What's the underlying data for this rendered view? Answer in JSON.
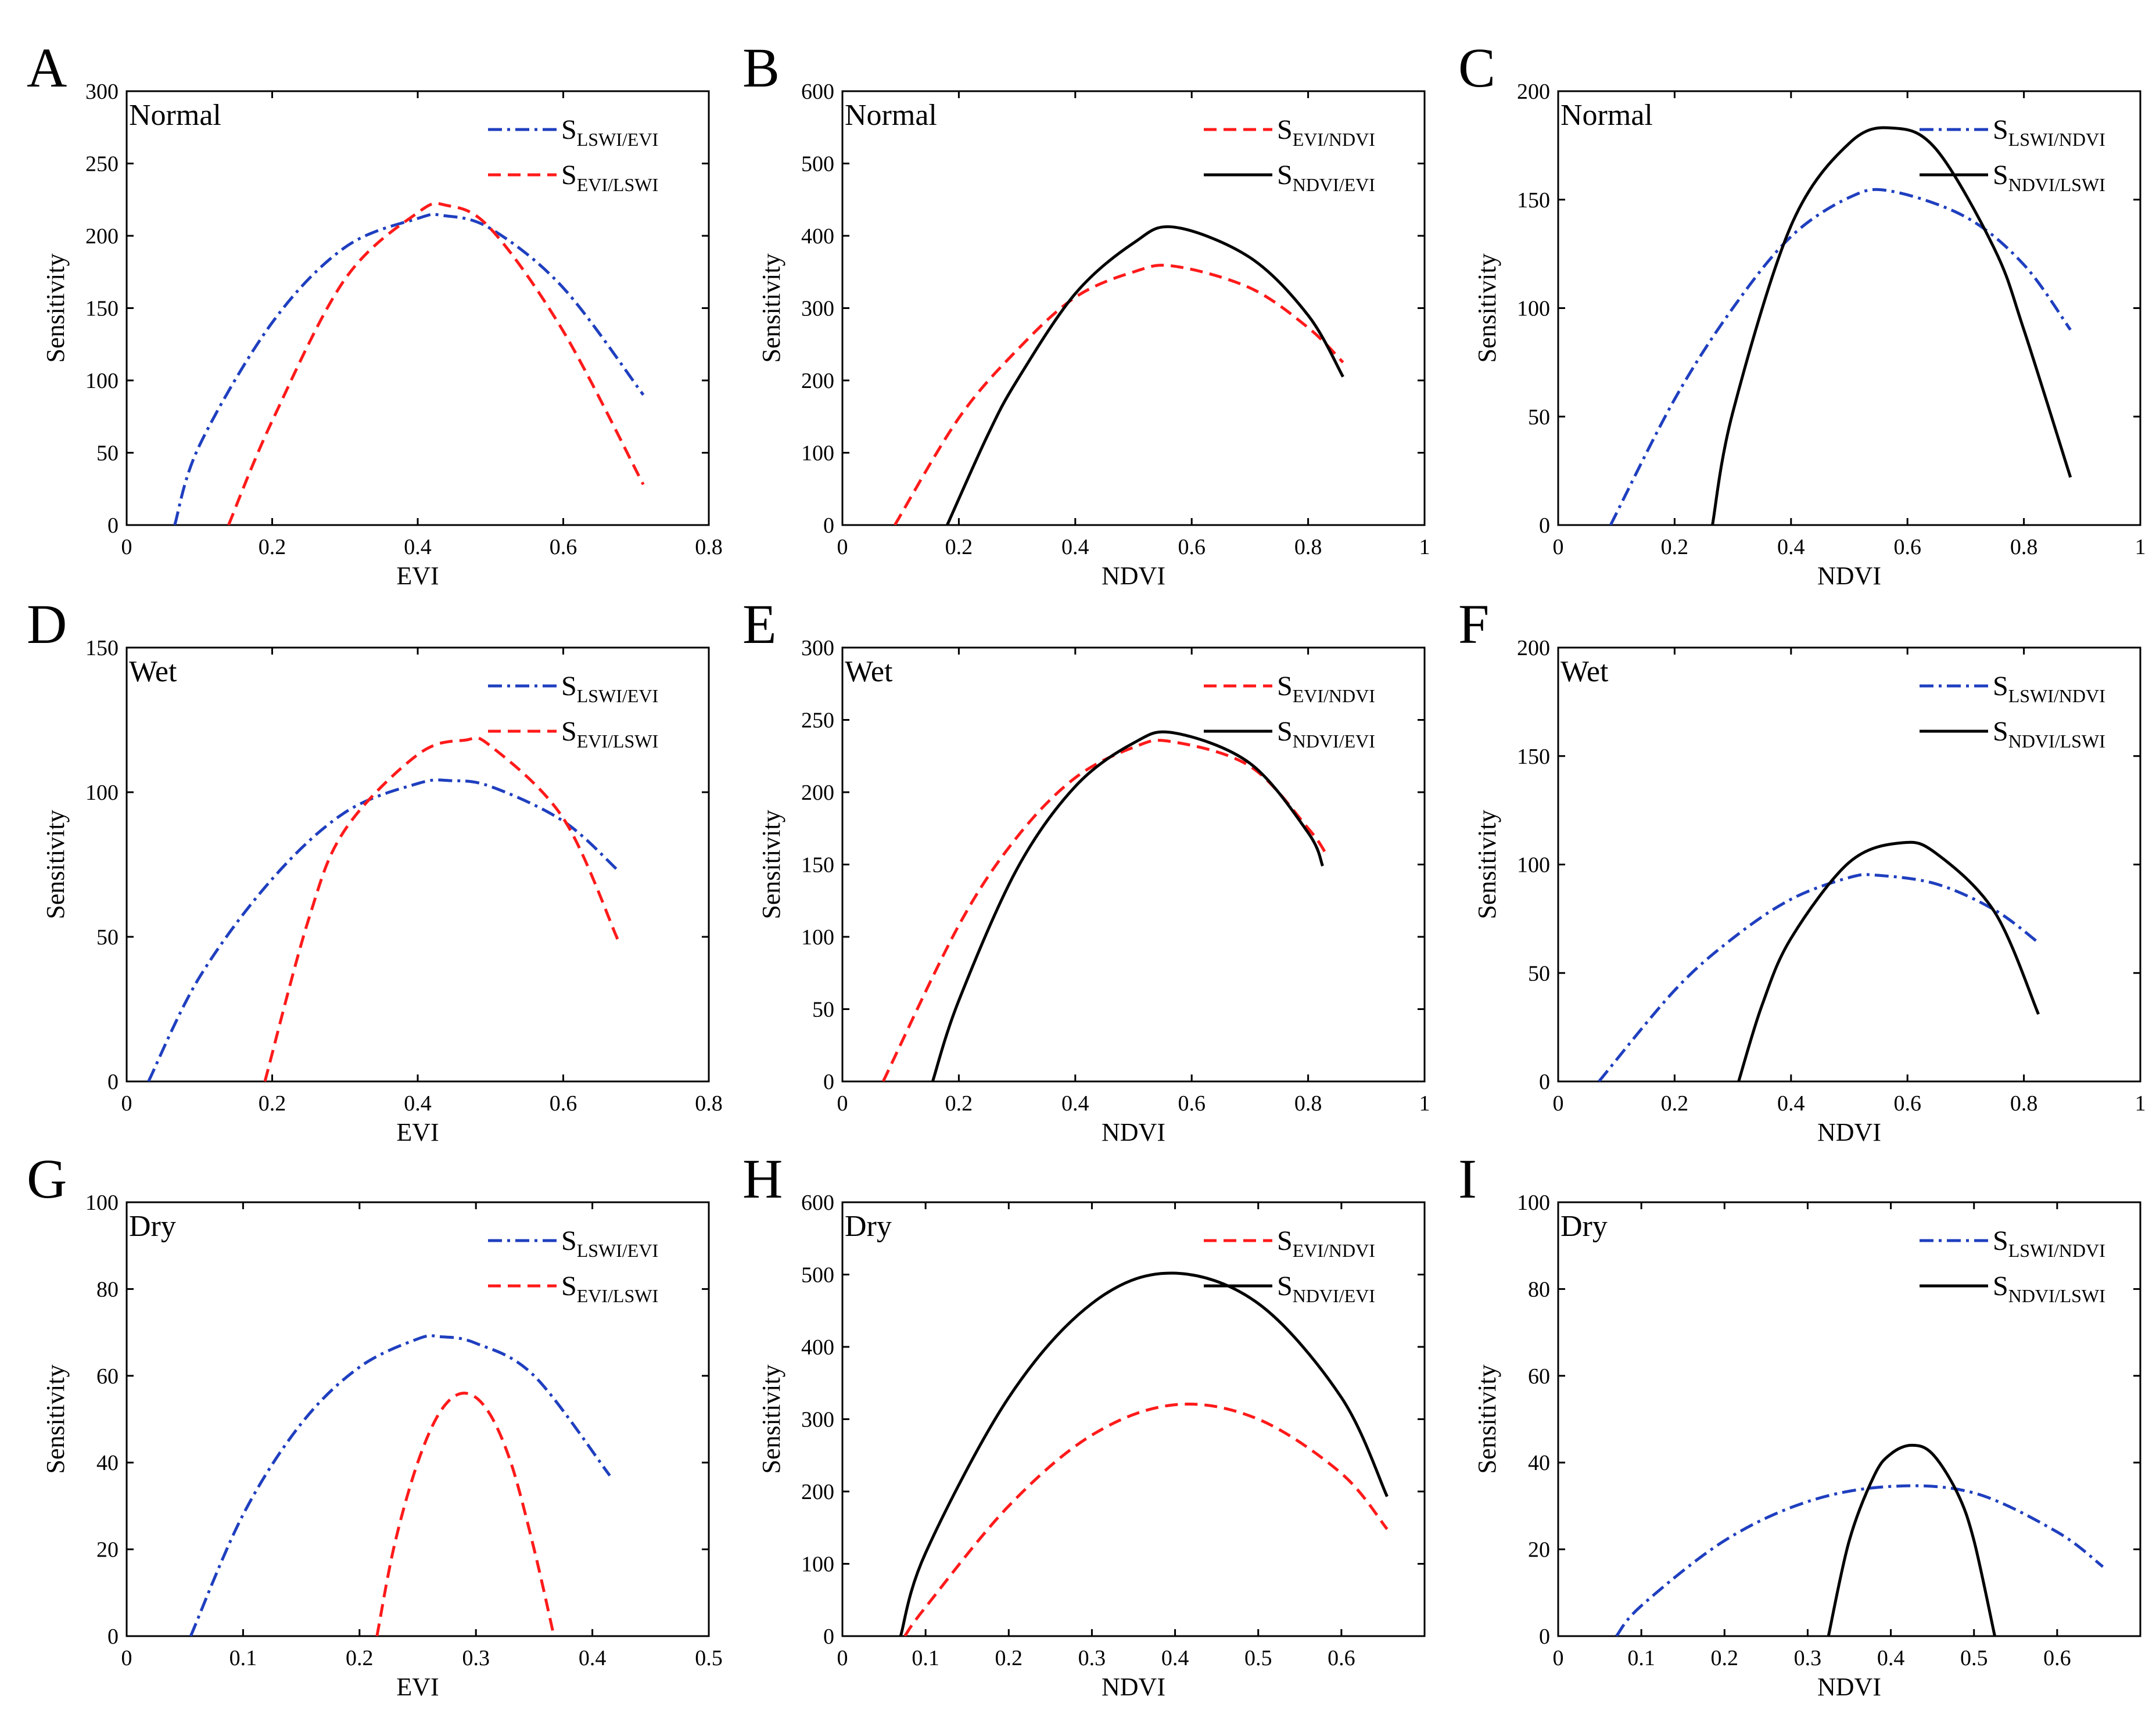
{
  "colors": {
    "blue": "#1f3fbf",
    "red": "#ff1a1a",
    "black": "#000000"
  },
  "chart_data": [
    {
      "panel": "A",
      "condition": "Normal",
      "type": "line",
      "xlabel": "EVI",
      "ylabel": "Sensitivity",
      "xlim": [
        0,
        0.8
      ],
      "ylim": [
        0,
        300
      ],
      "xticks": [
        "0",
        "0.2",
        "0.4",
        "0.6",
        "0.8"
      ],
      "yticks": [
        "0",
        "50",
        "100",
        "150",
        "200",
        "250",
        "300"
      ],
      "series": [
        {
          "name": "LSWI/EVI",
          "color": "blue",
          "dash": "dashdot",
          "x": [
            0.066,
            0.1,
            0.2,
            0.3,
            0.4,
            0.435,
            0.5,
            0.6,
            0.71
          ],
          "y": [
            0,
            55,
            140,
            192,
            212,
            214,
            205,
            164,
            90
          ]
        },
        {
          "name": "EVI/LSWI",
          "color": "red",
          "dash": "dashed",
          "x": [
            0.14,
            0.2,
            0.3,
            0.4,
            0.44,
            0.5,
            0.6,
            0.71
          ],
          "y": [
            0,
            72,
            170,
            216,
            221,
            205,
            134,
            28
          ]
        }
      ]
    },
    {
      "panel": "B",
      "condition": "Normal",
      "type": "line",
      "xlabel": "NDVI",
      "ylabel": "Sensitivity",
      "xlim": [
        0,
        1
      ],
      "ylim": [
        0,
        600
      ],
      "xticks": [
        "0",
        "0.2",
        "0.4",
        "0.6",
        "0.8",
        "1"
      ],
      "yticks": [
        "0",
        "100",
        "200",
        "300",
        "400",
        "500",
        "600"
      ],
      "series": [
        {
          "name": "EVI/NDVI",
          "color": "red",
          "dash": "dashed",
          "x": [
            0.09,
            0.2,
            0.3,
            0.4,
            0.5,
            0.57,
            0.7,
            0.8,
            0.86
          ],
          "y": [
            0,
            148,
            242,
            315,
            350,
            358,
            328,
            273,
            225
          ]
        },
        {
          "name": "NDVI/EVI",
          "color": "black",
          "dash": "solid",
          "x": [
            0.18,
            0.25,
            0.3,
            0.4,
            0.5,
            0.57,
            0.7,
            0.8,
            0.86
          ],
          "y": [
            0,
            125,
            200,
            320,
            390,
            412,
            370,
            290,
            205
          ]
        }
      ]
    },
    {
      "panel": "C",
      "condition": "Normal",
      "type": "line",
      "xlabel": "NDVI",
      "ylabel": "Sensitivity",
      "xlim": [
        0,
        1
      ],
      "ylim": [
        0,
        200
      ],
      "xticks": [
        "0",
        "0.2",
        "0.4",
        "0.6",
        "0.8",
        "1"
      ],
      "yticks": [
        "0",
        "50",
        "100",
        "150",
        "200"
      ],
      "series": [
        {
          "name": "LSWI/NDVI",
          "color": "blue",
          "dash": "dashdot",
          "x": [
            0.09,
            0.2,
            0.3,
            0.4,
            0.5,
            0.57,
            0.7,
            0.8,
            0.88
          ],
          "y": [
            0,
            58,
            100,
            133,
            151,
            154,
            142,
            120,
            90
          ]
        },
        {
          "name": "NDVI/LSWI",
          "color": "black",
          "dash": "solid",
          "x": [
            0.265,
            0.3,
            0.4,
            0.5,
            0.575,
            0.65,
            0.75,
            0.8,
            0.88
          ],
          "y": [
            0,
            52,
            138,
            176,
            183,
            173,
            127,
            90,
            22
          ]
        }
      ]
    },
    {
      "panel": "D",
      "condition": "Wet",
      "type": "line",
      "xlabel": "EVI",
      "ylabel": "Sensitivity",
      "xlim": [
        0,
        0.8
      ],
      "ylim": [
        0,
        150
      ],
      "xticks": [
        "0",
        "0.2",
        "0.4",
        "0.6",
        "0.8"
      ],
      "yticks": [
        "0",
        "50",
        "100",
        "150"
      ],
      "series": [
        {
          "name": "LSWI/EVI",
          "color": "blue",
          "dash": "dashdot",
          "x": [
            0.03,
            0.1,
            0.2,
            0.3,
            0.4,
            0.445,
            0.5,
            0.6,
            0.675
          ],
          "y": [
            0,
            36,
            70,
            93,
            103,
            104,
            102,
            90,
            73
          ]
        },
        {
          "name": "EVI/LSWI",
          "color": "red",
          "dash": "dashed",
          "x": [
            0.19,
            0.25,
            0.3,
            0.4,
            0.465,
            0.5,
            0.6,
            0.675
          ],
          "y": [
            0,
            56,
            87,
            113,
            118,
            116,
            91,
            49
          ]
        }
      ]
    },
    {
      "panel": "E",
      "condition": "Wet",
      "type": "line",
      "xlabel": "NDVI",
      "ylabel": "Sensitivity",
      "xlim": [
        0,
        1
      ],
      "ylim": [
        0,
        300
      ],
      "xticks": [
        "0",
        "0.2",
        "0.4",
        "0.6",
        "0.8",
        "1"
      ],
      "yticks": [
        "0",
        "50",
        "100",
        "150",
        "200",
        "250",
        "300"
      ],
      "series": [
        {
          "name": "EVI/NDVI",
          "color": "red",
          "dash": "dashed",
          "x": [
            0.07,
            0.2,
            0.3,
            0.4,
            0.5,
            0.565,
            0.7,
            0.8,
            0.83
          ],
          "y": [
            0,
            108,
            169,
            210,
            231,
            235,
            218,
            175,
            158
          ]
        },
        {
          "name": "NDVI/EVI",
          "color": "black",
          "dash": "solid",
          "x": [
            0.155,
            0.2,
            0.3,
            0.4,
            0.5,
            0.57,
            0.7,
            0.8,
            0.825
          ],
          "y": [
            0,
            56,
            147,
            204,
            234,
            241,
            220,
            172,
            149
          ]
        }
      ]
    },
    {
      "panel": "F",
      "condition": "Wet",
      "type": "line",
      "xlabel": "NDVI",
      "ylabel": "Sensitivity",
      "xlim": [
        0,
        1
      ],
      "ylim": [
        0,
        200
      ],
      "xticks": [
        "0",
        "0.2",
        "0.4",
        "0.6",
        "0.8",
        "1"
      ],
      "yticks": [
        "0",
        "50",
        "100",
        "150",
        "200"
      ],
      "series": [
        {
          "name": "LSWI/NDVI",
          "color": "blue",
          "dash": "dashdot",
          "x": [
            0.07,
            0.2,
            0.3,
            0.4,
            0.5,
            0.55,
            0.65,
            0.75,
            0.825
          ],
          "y": [
            0,
            42,
            66,
            84,
            94,
            95,
            91,
            79,
            64
          ]
        },
        {
          "name": "NDVI/LSWI",
          "color": "black",
          "dash": "solid",
          "x": [
            0.31,
            0.35,
            0.4,
            0.5,
            0.59,
            0.65,
            0.75,
            0.825
          ],
          "y": [
            0,
            35,
            66,
            101,
            110,
            105,
            78,
            31
          ]
        }
      ]
    },
    {
      "panel": "G",
      "condition": "Dry",
      "type": "line",
      "xlabel": "EVI",
      "ylabel": "Sensitivity",
      "xlim": [
        0,
        0.5
      ],
      "ylim": [
        0,
        100
      ],
      "xticks": [
        "0",
        "0.1",
        "0.2",
        "0.3",
        "0.4",
        "0.5"
      ],
      "yticks": [
        "0",
        "20",
        "40",
        "60",
        "80",
        "100"
      ],
      "series": [
        {
          "name": "LSWI/EVI",
          "color": "blue",
          "dash": "dashdot",
          "x": [
            0.055,
            0.1,
            0.15,
            0.2,
            0.25,
            0.27,
            0.3,
            0.35,
            0.415
          ],
          "y": [
            0,
            28,
            49,
            62,
            68.5,
            69,
            67.5,
            60,
            37
          ]
        },
        {
          "name": "EVI/LSWI",
          "color": "red",
          "dash": "dashed",
          "x": [
            0.215,
            0.23,
            0.25,
            0.27,
            0.29,
            0.31,
            0.33,
            0.35,
            0.367
          ],
          "y": [
            0,
            21,
            40,
            52,
            56,
            52,
            40,
            20,
            0
          ]
        }
      ]
    },
    {
      "panel": "H",
      "condition": "Dry",
      "type": "line",
      "xlabel": "NDVI",
      "ylabel": "Sensitivity",
      "xlim": [
        0,
        0.7
      ],
      "ylim": [
        0,
        600
      ],
      "xticks": [
        "0",
        "0.1",
        "0.2",
        "0.3",
        "0.4",
        "0.5",
        "0.6"
      ],
      "yticks": [
        "0",
        "100",
        "200",
        "300",
        "400",
        "500",
        "600"
      ],
      "series": [
        {
          "name": "EVI/NDVI",
          "color": "red",
          "dash": "dashed",
          "x": [
            0.075,
            0.1,
            0.2,
            0.3,
            0.4,
            0.5,
            0.6,
            0.655
          ],
          "y": [
            0,
            40,
            180,
            278,
            320,
            300,
            225,
            148
          ]
        },
        {
          "name": "NDVI/EVI",
          "color": "black",
          "dash": "solid",
          "x": [
            0.07,
            0.1,
            0.2,
            0.3,
            0.395,
            0.5,
            0.6,
            0.655
          ],
          "y": [
            0,
            115,
            330,
            460,
            502,
            460,
            330,
            193
          ]
        }
      ]
    },
    {
      "panel": "I",
      "condition": "Dry",
      "type": "line",
      "xlabel": "NDVI",
      "ylabel": "Sensitivity",
      "xlim": [
        0,
        0.7
      ],
      "ylim": [
        0,
        100
      ],
      "xticks": [
        "0",
        "0.1",
        "0.2",
        "0.3",
        "0.4",
        "0.5",
        "0.6"
      ],
      "yticks": [
        "0",
        "20",
        "40",
        "60",
        "80",
        "100"
      ],
      "series": [
        {
          "name": "LSWI/NDVI",
          "color": "blue",
          "dash": "dashdot",
          "x": [
            0.07,
            0.1,
            0.2,
            0.3,
            0.4,
            0.5,
            0.6,
            0.655
          ],
          "y": [
            0,
            7,
            22,
            31,
            34.5,
            33,
            24,
            16
          ]
        },
        {
          "name": "NDVI/LSWI",
          "color": "black",
          "dash": "solid",
          "x": [
            0.325,
            0.35,
            0.38,
            0.4,
            0.425,
            0.45,
            0.48,
            0.5,
            0.525
          ],
          "y": [
            0,
            22,
            37,
            42,
            44,
            42,
            33,
            22,
            0
          ]
        }
      ]
    }
  ]
}
